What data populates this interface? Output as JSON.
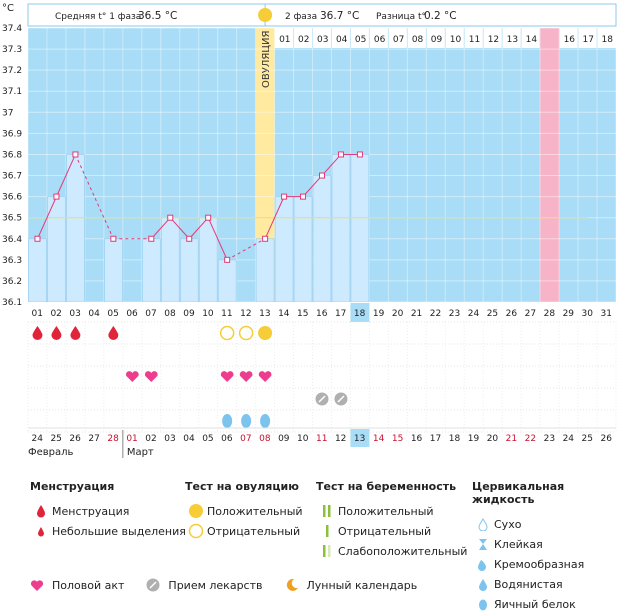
{
  "header": {
    "unit": "°C",
    "phase1_label": "Средняя t° 1 фаза",
    "phase1_value": "36.5 °C",
    "phase2_label": "2 фаза",
    "phase2_value": "36.7 °C",
    "diff_label": "Разница t°",
    "diff_value": "0.2 °C"
  },
  "ovulation_label": "ОВУЛЯЦИЯ",
  "chart_data": {
    "type": "bar",
    "ylim": [
      36.1,
      37.4
    ],
    "y_ticks": [
      "36.1",
      "36.2",
      "36.3",
      "36.4",
      "36.5",
      "36.6",
      "36.7",
      "36.8",
      "36.9",
      "37",
      "37.1",
      "37.2",
      "37.3",
      "37.4"
    ],
    "cycle_days": [
      "01",
      "02",
      "03",
      "04",
      "05",
      "06",
      "07",
      "08",
      "09",
      "10",
      "11",
      "12",
      "13",
      "14",
      "15",
      "16",
      "17",
      "18",
      "19",
      "20",
      "21",
      "22",
      "23",
      "24",
      "25",
      "26",
      "27",
      "28",
      "29",
      "30",
      "31"
    ],
    "current_day": "18",
    "ovulation_day_index": 12,
    "pink_day_index": 27,
    "phase2_days": [
      "01",
      "02",
      "03",
      "04",
      "05",
      "06",
      "07",
      "08",
      "09",
      "10",
      "11",
      "12",
      "13",
      "14",
      "15",
      "16",
      "17",
      "18"
    ],
    "temperatures": [
      36.4,
      36.6,
      36.8,
      null,
      36.4,
      null,
      36.4,
      36.5,
      36.4,
      36.5,
      36.3,
      null,
      36.4,
      36.6,
      36.6,
      36.7,
      36.8,
      36.8
    ],
    "average_line": 36.5,
    "calendar_days": [
      "24",
      "25",
      "26",
      "27",
      "28",
      "01",
      "02",
      "03",
      "04",
      "05",
      "06",
      "07",
      "08",
      "09",
      "10",
      "11",
      "12",
      "13",
      "14",
      "15",
      "16",
      "17",
      "18",
      "19",
      "20",
      "21",
      "22",
      "23",
      "24",
      "25",
      "26"
    ],
    "calendar_colors": [
      "n",
      "n",
      "n",
      "n",
      "r",
      "r",
      "n",
      "n",
      "n",
      "n",
      "n",
      "r",
      "r",
      "n",
      "n",
      "r",
      "n",
      "c",
      "r",
      "r",
      "n",
      "n",
      "n",
      "n",
      "n",
      "r",
      "r",
      "n",
      "n",
      "n",
      "n"
    ],
    "month_labels": [
      {
        "index": 0,
        "text": "Февраль"
      },
      {
        "index": 5,
        "text": "Март"
      }
    ],
    "menstruation_days": [
      0,
      1,
      2,
      4
    ],
    "ovulation_test_negative_days": [
      10,
      11
    ],
    "ovulation_test_positive_days": [
      12
    ],
    "intercourse_days": [
      5,
      6,
      10,
      11,
      12
    ],
    "medication_days": [
      15,
      16
    ],
    "egg_white_days": [
      10,
      11,
      12
    ]
  },
  "colors": {
    "bar_fill": "#cdeaff",
    "bar_stroke": "#8ec9ee",
    "sky": "#a9dcf6",
    "ovulation": "#ffeaa0",
    "pink": "#f7b3c8",
    "point": "#e23a7a",
    "red": "#e0253a",
    "heart": "#ee3c8f",
    "drop_blue": "#7cc3ee",
    "grey": "#b0b0b0",
    "yellow": "#f6cc37",
    "green": "#8cc03c",
    "orange": "#f0a020"
  },
  "legend": {
    "menstruation": {
      "title": "Менструация",
      "items": [
        "Менструация",
        "Небольшие выделения"
      ]
    },
    "ovulation_test": {
      "title": "Тест на овуляцию",
      "items": [
        "Положительный",
        "Отрицательный"
      ]
    },
    "pregnancy_test": {
      "title": "Тест на беременность",
      "items": [
        "Положительный",
        "Отрицательный",
        "Слабоположительный"
      ]
    },
    "cervical": {
      "title": "Цервикальная жидкость",
      "items": [
        "Сухо",
        "Клейкая",
        "Кремообразная",
        "Водянистая",
        "Яичный белок"
      ]
    },
    "bottom": [
      "Половой акт",
      "Прием лекарств",
      "Лунный календарь"
    ]
  }
}
